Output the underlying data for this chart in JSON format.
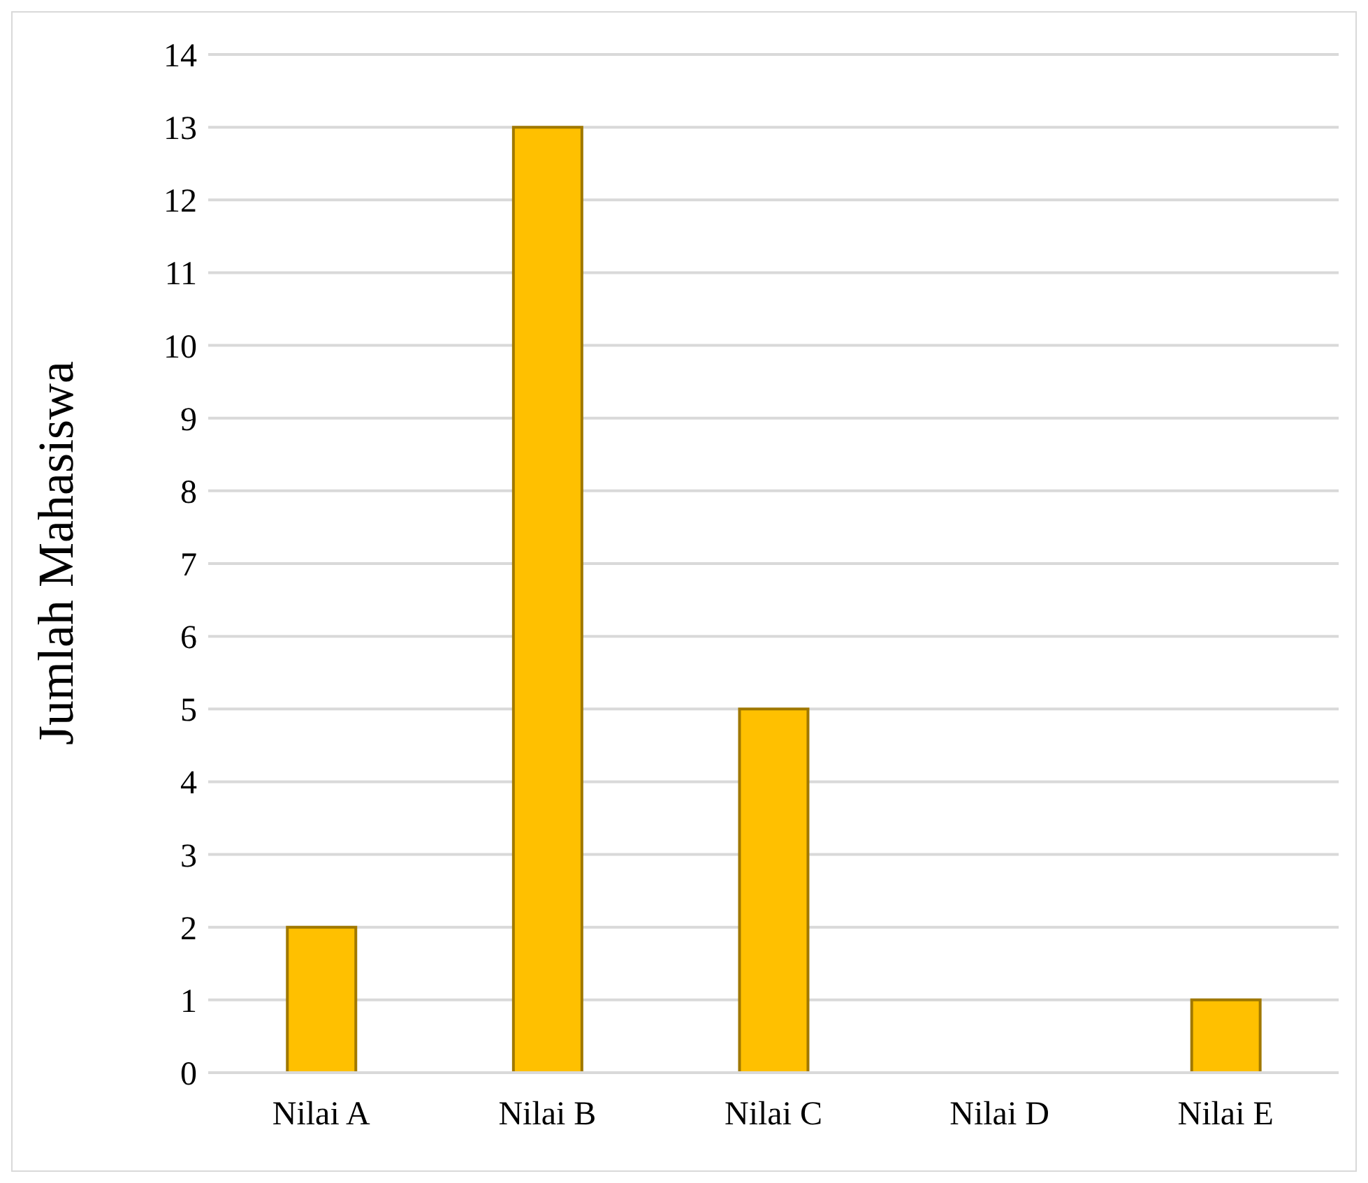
{
  "chart_data": {
    "type": "bar",
    "ylabel": "Jumlah Mahasiswa",
    "categories": [
      "Nilai A",
      "Nilai B",
      "Nilai C",
      "Nilai D",
      "Nilai E"
    ],
    "values": [
      2,
      13,
      5,
      0,
      1
    ],
    "color": "#ffc000",
    "ylim": [
      0,
      14
    ],
    "yticks": [
      0,
      1,
      2,
      3,
      4,
      5,
      6,
      7,
      8,
      9,
      10,
      11,
      12,
      13,
      14
    ],
    "grid": "y"
  }
}
